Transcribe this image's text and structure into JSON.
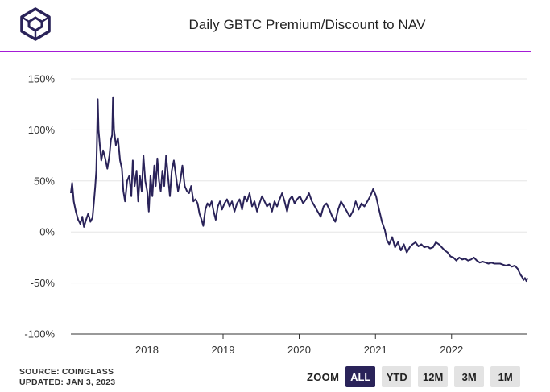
{
  "header": {
    "title": "Daily GBTC Premium/Discount to NAV",
    "logo_icon": "theblock-cube-logo"
  },
  "footer": {
    "source": "SOURCE: COINGLASS",
    "updated": "UPDATED: JAN 3, 2023"
  },
  "zoom": {
    "label": "ZOOM",
    "buttons": [
      {
        "label": "ALL",
        "active": true
      },
      {
        "label": "YTD",
        "active": false
      },
      {
        "label": "12M",
        "active": false
      },
      {
        "label": "3M",
        "active": false
      },
      {
        "label": "1M",
        "active": false
      }
    ]
  },
  "chart_data": {
    "type": "line",
    "title": "Daily GBTC Premium/Discount to NAV",
    "xlabel": "",
    "ylabel": "",
    "y_unit": "%",
    "ylim": [
      -100,
      150
    ],
    "yticks": [
      150,
      100,
      50,
      0,
      -50,
      -100
    ],
    "xlim": [
      "2017-01-01",
      "2022-12-31"
    ],
    "xticks": [
      "2018",
      "2019",
      "2020",
      "2021",
      "2022"
    ],
    "grid": "horizontal",
    "line_color": "#2a2359",
    "series": [
      {
        "points": [
          [
            "2017-01-01",
            38
          ],
          [
            "2017-01-07",
            48
          ],
          [
            "2017-01-15",
            30
          ],
          [
            "2017-01-25",
            20
          ],
          [
            "2017-02-05",
            12
          ],
          [
            "2017-02-15",
            8
          ],
          [
            "2017-02-25",
            15
          ],
          [
            "2017-03-05",
            5
          ],
          [
            "2017-03-15",
            12
          ],
          [
            "2017-03-25",
            18
          ],
          [
            "2017-04-05",
            10
          ],
          [
            "2017-04-15",
            14
          ],
          [
            "2017-04-22",
            30
          ],
          [
            "2017-04-28",
            45
          ],
          [
            "2017-05-03",
            60
          ],
          [
            "2017-05-06",
            88
          ],
          [
            "2017-05-10",
            130
          ],
          [
            "2017-05-14",
            100
          ],
          [
            "2017-05-20",
            85
          ],
          [
            "2017-05-27",
            70
          ],
          [
            "2017-06-05",
            80
          ],
          [
            "2017-06-15",
            72
          ],
          [
            "2017-06-25",
            62
          ],
          [
            "2017-07-05",
            75
          ],
          [
            "2017-07-12",
            90
          ],
          [
            "2017-07-18",
            95
          ],
          [
            "2017-07-22",
            132
          ],
          [
            "2017-07-27",
            100
          ],
          [
            "2017-08-05",
            85
          ],
          [
            "2017-08-15",
            92
          ],
          [
            "2017-08-25",
            70
          ],
          [
            "2017-09-03",
            62
          ],
          [
            "2017-09-10",
            40
          ],
          [
            "2017-09-18",
            30
          ],
          [
            "2017-09-28",
            50
          ],
          [
            "2017-10-08",
            55
          ],
          [
            "2017-10-18",
            35
          ],
          [
            "2017-10-25",
            70
          ],
          [
            "2017-11-03",
            45
          ],
          [
            "2017-11-12",
            60
          ],
          [
            "2017-11-20",
            30
          ],
          [
            "2017-11-28",
            55
          ],
          [
            "2017-12-07",
            40
          ],
          [
            "2017-12-15",
            75
          ],
          [
            "2017-12-24",
            50
          ],
          [
            "2018-01-02",
            40
          ],
          [
            "2018-01-10",
            20
          ],
          [
            "2018-01-18",
            55
          ],
          [
            "2018-01-27",
            35
          ],
          [
            "2018-02-05",
            65
          ],
          [
            "2018-02-12",
            45
          ],
          [
            "2018-02-20",
            72
          ],
          [
            "2018-02-28",
            50
          ],
          [
            "2018-03-08",
            40
          ],
          [
            "2018-03-16",
            60
          ],
          [
            "2018-03-25",
            45
          ],
          [
            "2018-04-03",
            75
          ],
          [
            "2018-04-12",
            55
          ],
          [
            "2018-04-21",
            35
          ],
          [
            "2018-04-30",
            60
          ],
          [
            "2018-05-10",
            70
          ],
          [
            "2018-05-20",
            55
          ],
          [
            "2018-05-30",
            40
          ],
          [
            "2018-06-10",
            50
          ],
          [
            "2018-06-20",
            65
          ],
          [
            "2018-07-01",
            45
          ],
          [
            "2018-07-12",
            40
          ],
          [
            "2018-07-22",
            38
          ],
          [
            "2018-08-01",
            45
          ],
          [
            "2018-08-12",
            30
          ],
          [
            "2018-08-22",
            32
          ],
          [
            "2018-09-01",
            28
          ],
          [
            "2018-09-10",
            18
          ],
          [
            "2018-09-20",
            12
          ],
          [
            "2018-09-28",
            6
          ],
          [
            "2018-10-08",
            22
          ],
          [
            "2018-10-18",
            28
          ],
          [
            "2018-10-28",
            25
          ],
          [
            "2018-11-07",
            30
          ],
          [
            "2018-11-17",
            20
          ],
          [
            "2018-11-27",
            12
          ],
          [
            "2018-12-07",
            25
          ],
          [
            "2018-12-17",
            30
          ],
          [
            "2018-12-27",
            22
          ],
          [
            "2019-01-08",
            28
          ],
          [
            "2019-01-20",
            32
          ],
          [
            "2019-02-01",
            25
          ],
          [
            "2019-02-13",
            30
          ],
          [
            "2019-02-25",
            20
          ],
          [
            "2019-03-09",
            28
          ],
          [
            "2019-03-21",
            32
          ],
          [
            "2019-04-02",
            22
          ],
          [
            "2019-04-14",
            35
          ],
          [
            "2019-04-26",
            30
          ],
          [
            "2019-05-08",
            38
          ],
          [
            "2019-05-20",
            25
          ],
          [
            "2019-06-01",
            30
          ],
          [
            "2019-06-13",
            20
          ],
          [
            "2019-06-25",
            28
          ],
          [
            "2019-07-07",
            35
          ],
          [
            "2019-07-19",
            30
          ],
          [
            "2019-07-31",
            25
          ],
          [
            "2019-08-12",
            28
          ],
          [
            "2019-08-24",
            20
          ],
          [
            "2019-09-05",
            30
          ],
          [
            "2019-09-17",
            25
          ],
          [
            "2019-09-29",
            32
          ],
          [
            "2019-10-11",
            38
          ],
          [
            "2019-10-23",
            30
          ],
          [
            "2019-11-04",
            20
          ],
          [
            "2019-11-16",
            32
          ],
          [
            "2019-11-28",
            35
          ],
          [
            "2019-12-10",
            28
          ],
          [
            "2019-12-22",
            32
          ],
          [
            "2020-01-05",
            35
          ],
          [
            "2020-01-20",
            28
          ],
          [
            "2020-02-03",
            32
          ],
          [
            "2020-02-17",
            38
          ],
          [
            "2020-03-02",
            30
          ],
          [
            "2020-03-16",
            25
          ],
          [
            "2020-03-30",
            20
          ],
          [
            "2020-04-13",
            15
          ],
          [
            "2020-04-27",
            25
          ],
          [
            "2020-05-11",
            28
          ],
          [
            "2020-05-25",
            22
          ],
          [
            "2020-06-08",
            15
          ],
          [
            "2020-06-22",
            10
          ],
          [
            "2020-07-06",
            22
          ],
          [
            "2020-07-20",
            30
          ],
          [
            "2020-08-03",
            25
          ],
          [
            "2020-08-17",
            20
          ],
          [
            "2020-08-31",
            15
          ],
          [
            "2020-09-14",
            20
          ],
          [
            "2020-09-28",
            30
          ],
          [
            "2020-10-12",
            22
          ],
          [
            "2020-10-26",
            28
          ],
          [
            "2020-11-09",
            25
          ],
          [
            "2020-11-23",
            30
          ],
          [
            "2020-12-07",
            35
          ],
          [
            "2020-12-21",
            42
          ],
          [
            "2021-01-04",
            35
          ],
          [
            "2021-01-18",
            22
          ],
          [
            "2021-02-01",
            10
          ],
          [
            "2021-02-15",
            2
          ],
          [
            "2021-02-25",
            -8
          ],
          [
            "2021-03-08",
            -12
          ],
          [
            "2021-03-22",
            -5
          ],
          [
            "2021-04-05",
            -15
          ],
          [
            "2021-04-19",
            -10
          ],
          [
            "2021-05-03",
            -18
          ],
          [
            "2021-05-17",
            -12
          ],
          [
            "2021-05-31",
            -20
          ],
          [
            "2021-06-14",
            -15
          ],
          [
            "2021-06-28",
            -12
          ],
          [
            "2021-07-12",
            -10
          ],
          [
            "2021-07-26",
            -14
          ],
          [
            "2021-08-09",
            -12
          ],
          [
            "2021-08-23",
            -15
          ],
          [
            "2021-09-06",
            -14
          ],
          [
            "2021-09-20",
            -16
          ],
          [
            "2021-10-04",
            -15
          ],
          [
            "2021-10-18",
            -10
          ],
          [
            "2021-11-01",
            -12
          ],
          [
            "2021-11-15",
            -15
          ],
          [
            "2021-11-29",
            -18
          ],
          [
            "2021-12-13",
            -20
          ],
          [
            "2021-12-27",
            -24
          ],
          [
            "2022-01-10",
            -25
          ],
          [
            "2022-01-24",
            -28
          ],
          [
            "2022-02-07",
            -25
          ],
          [
            "2022-02-21",
            -27
          ],
          [
            "2022-03-07",
            -26
          ],
          [
            "2022-03-21",
            -28
          ],
          [
            "2022-04-04",
            -27
          ],
          [
            "2022-04-18",
            -25
          ],
          [
            "2022-05-02",
            -28
          ],
          [
            "2022-05-16",
            -30
          ],
          [
            "2022-05-30",
            -29
          ],
          [
            "2022-06-13",
            -30
          ],
          [
            "2022-06-27",
            -31
          ],
          [
            "2022-07-11",
            -30
          ],
          [
            "2022-07-25",
            -31
          ],
          [
            "2022-08-08",
            -31
          ],
          [
            "2022-08-22",
            -31
          ],
          [
            "2022-09-05",
            -32
          ],
          [
            "2022-09-19",
            -33
          ],
          [
            "2022-10-03",
            -32
          ],
          [
            "2022-10-17",
            -34
          ],
          [
            "2022-10-31",
            -33
          ],
          [
            "2022-11-14",
            -36
          ],
          [
            "2022-11-28",
            -42
          ],
          [
            "2022-12-05",
            -44
          ],
          [
            "2022-12-12",
            -47
          ],
          [
            "2022-12-19",
            -45
          ],
          [
            "2022-12-26",
            -48
          ],
          [
            "2022-12-31",
            -45
          ]
        ]
      }
    ]
  }
}
